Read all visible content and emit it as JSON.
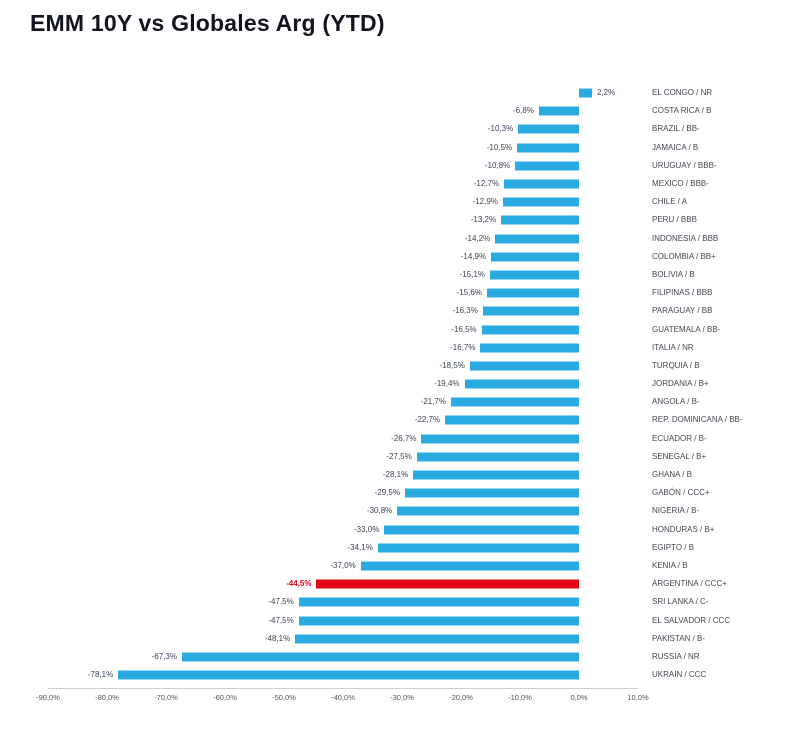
{
  "title": "EMM 10Y vs Globales Arg (YTD)",
  "chart_data": {
    "type": "bar",
    "orientation": "horizontal",
    "title": "EMM 10Y vs Globales Arg (YTD)",
    "xlabel": "",
    "ylabel": "",
    "xlim": [
      -90,
      10
    ],
    "grid": false,
    "legend": "none",
    "bar_color": "#29abe2",
    "highlight_color": "#e30613",
    "highlight_category": "ARGENTINA / CCC+",
    "categories": [
      "EL CONGO / NR",
      "COSTA RICA / B",
      "BRAZIL / BB-",
      "JAMAICA / B",
      "URUGUAY / BBB-",
      "MEXICO / BBB-",
      "CHILE / A",
      "PERU / BBB",
      "INDONESIA / BBB",
      "COLOMBIA / BB+",
      "BOLIVIA / B",
      "FILIPINAS / BBB",
      "PARAGUAY / BB",
      "GUATEMALA / BB-",
      "ITALIA / NR",
      "TURQUIA / B",
      "JORDANIA / B+",
      "ANGOLA / B-",
      "REP. DOMINICANA / BB-",
      "ECUADOR / B-",
      "SENEGAL / B+",
      "GHANA / B",
      "GABÓN / CCC+",
      "NIGERIA / B-",
      "HONDURAS / B+",
      "EGIPTO / B",
      "KENIA / B",
      "ARGENTINA / CCC+",
      "SRI LANKA / C-",
      "EL SALVADOR / CCC",
      "PAKISTAN / B-",
      "RUSSIA / NR",
      "UKRAIN / CCC"
    ],
    "values": [
      2.2,
      -6.8,
      -10.3,
      -10.5,
      -10.8,
      -12.7,
      -12.9,
      -13.2,
      -14.2,
      -14.9,
      -15.1,
      -15.6,
      -16.3,
      -16.5,
      -16.7,
      -18.5,
      -19.4,
      -21.7,
      -22.7,
      -26.7,
      -27.5,
      -28.1,
      -29.5,
      -30.8,
      -33.0,
      -34.1,
      -37.0,
      -44.5,
      -47.5,
      -47.5,
      -48.1,
      -67.3,
      -78.1
    ],
    "value_labels": [
      "2,2%",
      "-6,8%",
      "-10,3%",
      "-10,5%",
      "-10,8%",
      "-12,7%",
      "-12,9%",
      "-13,2%",
      "-14,2%",
      "-14,9%",
      "-15,1%",
      "-15,6%",
      "-16,3%",
      "-16,5%",
      "-16,7%",
      "-18,5%",
      "-19,4%",
      "-21,7%",
      "-22,7%",
      "-26,7%",
      "-27,5%",
      "-28,1%",
      "-29,5%",
      "-30,8%",
      "-33,0%",
      "-34,1%",
      "-37,0%",
      "-44,5%",
      "-47,5%",
      "-47,5%",
      "-48,1%",
      "-67,3%",
      "-78,1%"
    ],
    "x_ticks": [
      "-90,0%",
      "-80,0%",
      "-70,0%",
      "-60,0%",
      "-50,0%",
      "-40,0%",
      "-30,0%",
      "-20,0%",
      "-10,0%",
      "0,0%",
      "10,0%"
    ]
  }
}
